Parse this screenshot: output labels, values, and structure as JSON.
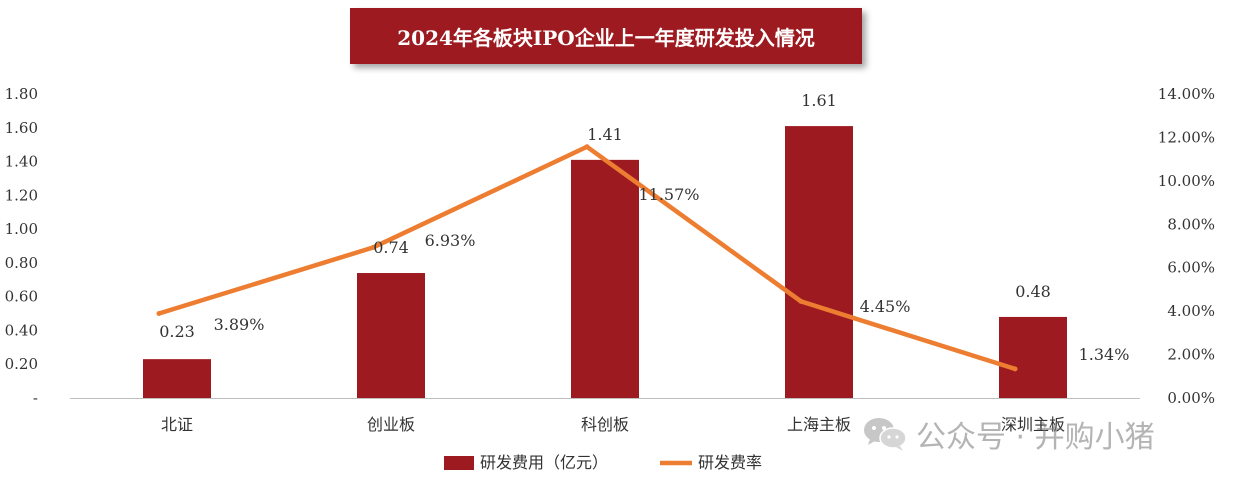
{
  "chart_data": {
    "type": "bar+line",
    "title": "2024年各板块IPO企业上一年度研发投入情况",
    "categories": [
      "北证",
      "创业板",
      "科创板",
      "上海主板",
      "深圳主板"
    ],
    "series": [
      {
        "name": "研发费用（亿元）",
        "type": "bar",
        "axis": "left",
        "values": [
          0.23,
          0.74,
          1.41,
          1.61,
          0.48
        ],
        "labels": [
          "0.23",
          "0.74",
          "1.41",
          "1.61",
          "0.48"
        ],
        "color": "#9d1b20"
      },
      {
        "name": "研发费率",
        "type": "line",
        "axis": "right",
        "values": [
          3.89,
          6.93,
          11.57,
          4.45,
          1.34
        ],
        "labels": [
          "3.89%",
          "6.93%",
          "11.57%",
          "4.45%",
          "1.34%"
        ],
        "color": "#ed7d31"
      }
    ],
    "y_left": {
      "ylim": [
        0,
        1.8
      ],
      "ticks": [
        0,
        0.2,
        0.4,
        0.6,
        0.8,
        1.0,
        1.2,
        1.4,
        1.6,
        1.8
      ],
      "tick_labels": [
        "-",
        "0.20",
        "0.40",
        "0.60",
        "0.80",
        "1.00",
        "1.20",
        "1.40",
        "1.60",
        "1.80"
      ]
    },
    "y_right": {
      "ylim": [
        0,
        14
      ],
      "ticks": [
        0,
        2,
        4,
        6,
        8,
        10,
        12,
        14
      ],
      "tick_labels": [
        "0.00%",
        "2.00%",
        "4.00%",
        "6.00%",
        "8.00%",
        "10.00%",
        "12.00%",
        "14.00%"
      ]
    },
    "grid": false,
    "legend_position": "bottom",
    "xlabel": "",
    "ylabel": ""
  },
  "watermark": {
    "text": "公众号 · 并购小猪",
    "icon": "wechat-icon"
  }
}
